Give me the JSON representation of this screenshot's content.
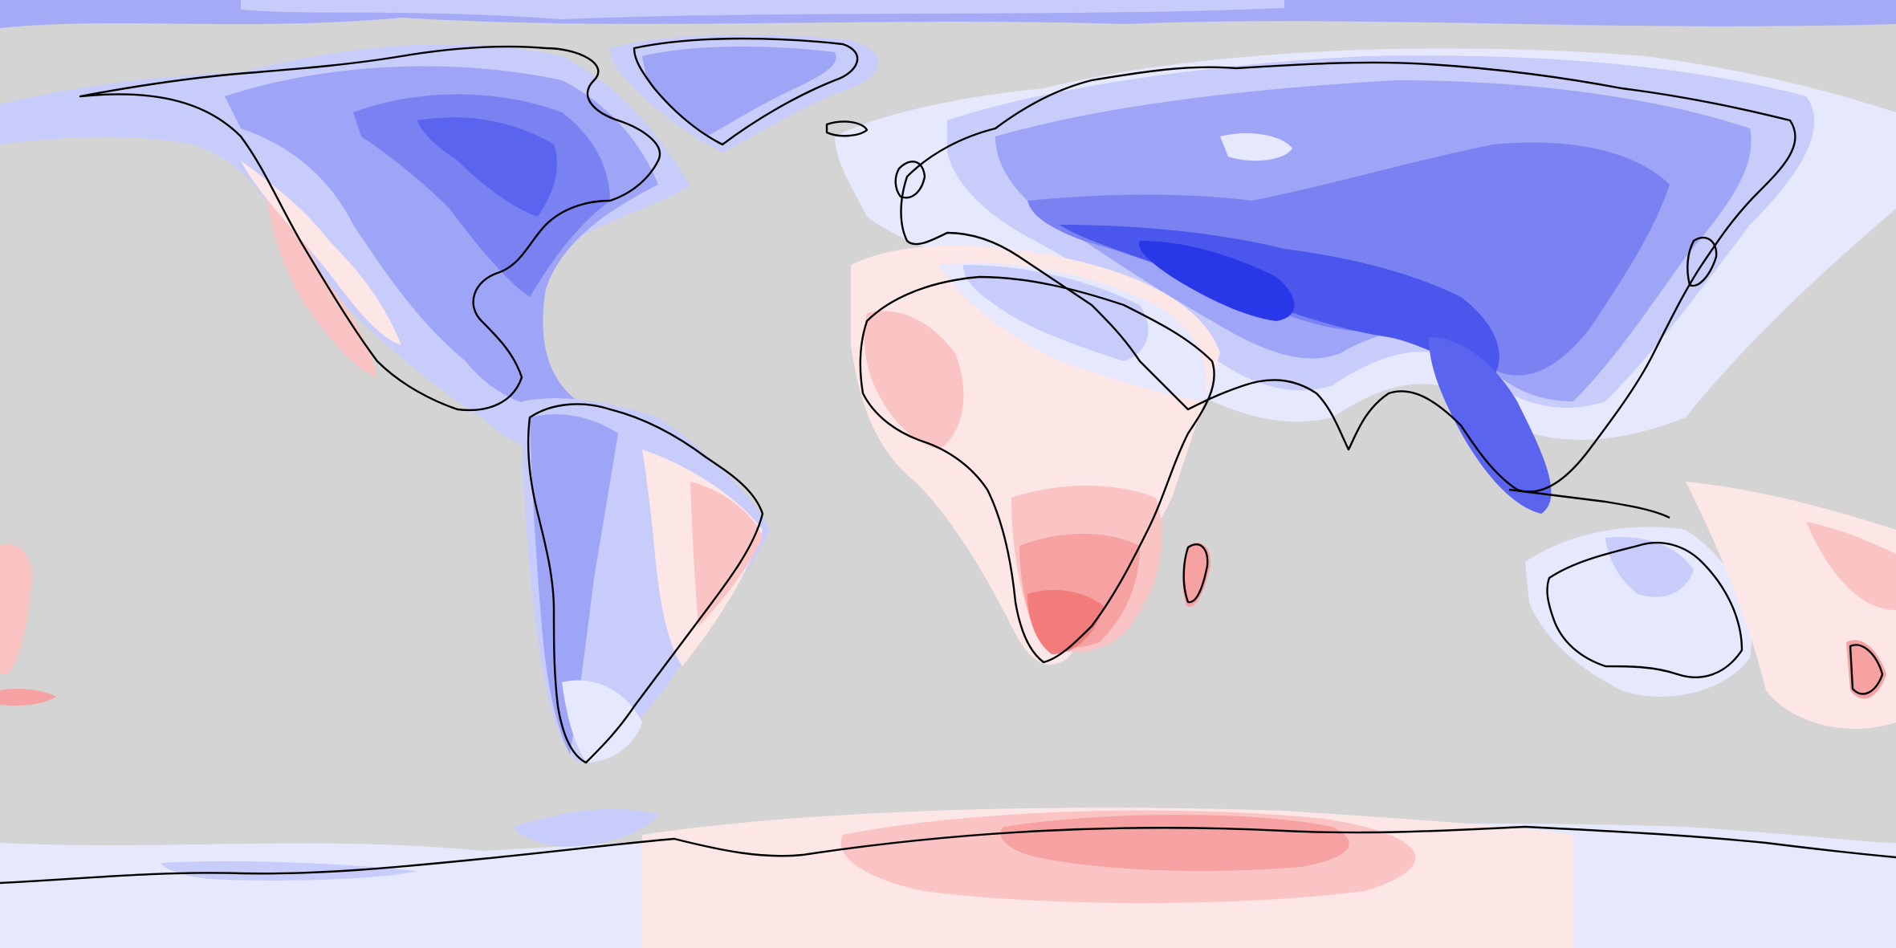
{
  "map": {
    "projection": "equirectangular",
    "ocean_color": "#d4d4d4",
    "coastline_color": "#000000",
    "palette": {
      "blue_strong": "#2030e8",
      "blue_dark": "#4050ee",
      "blue_mid": "#6a74f2",
      "blue_light": "#9ea4f6",
      "blue_pale": "#c8ccfa",
      "blue_faint": "#e6e8fd",
      "neutral": "#f4f2f6",
      "red_faint": "#fde6e6",
      "red_pale": "#fbc4c4",
      "red_light": "#f7a2a2",
      "red_mid": "#f27c7c"
    }
  }
}
